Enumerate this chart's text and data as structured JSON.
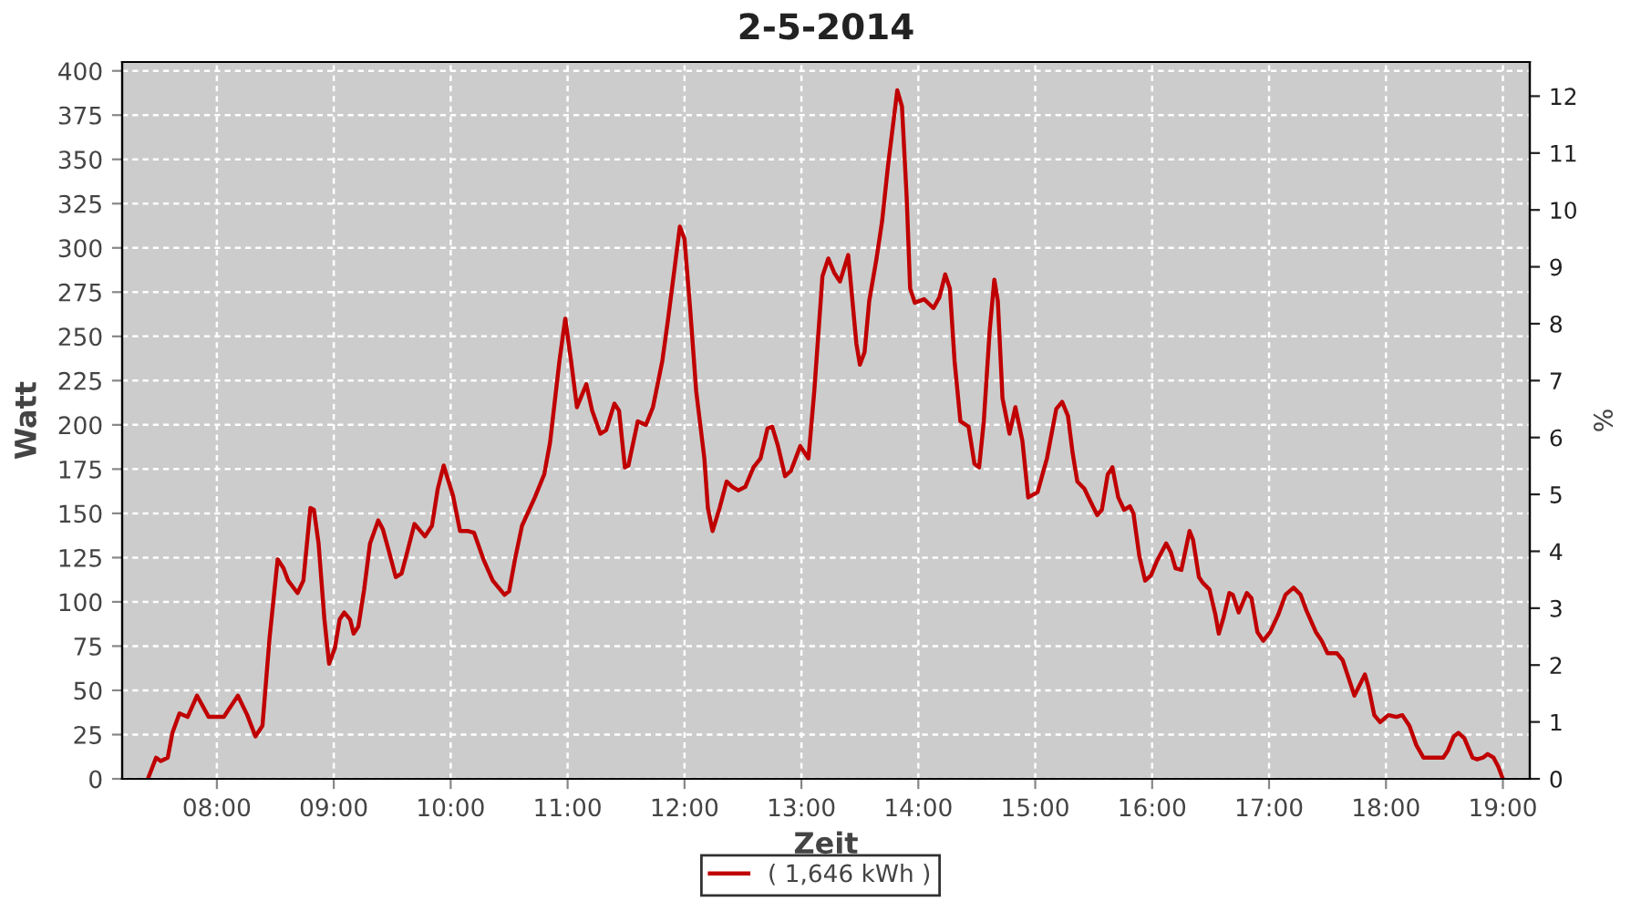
{
  "chart_data": {
    "type": "line",
    "title": "2-5-2014",
    "xlabel": "Zeit",
    "ylabel": "Watt",
    "y2label": "%",
    "xlim": [
      7.19,
      19.23
    ],
    "xticks": [
      {
        "value": 8,
        "label": "08:00"
      },
      {
        "value": 9,
        "label": "09:00"
      },
      {
        "value": 10,
        "label": "10:00"
      },
      {
        "value": 11,
        "label": "11:00"
      },
      {
        "value": 12,
        "label": "12:00"
      },
      {
        "value": 13,
        "label": "13:00"
      },
      {
        "value": 14,
        "label": "14:00"
      },
      {
        "value": 15,
        "label": "15:00"
      },
      {
        "value": 16,
        "label": "16:00"
      },
      {
        "value": 17,
        "label": "17:00"
      },
      {
        "value": 18,
        "label": "18:00"
      },
      {
        "value": 19,
        "label": "19:00"
      }
    ],
    "ylim": [
      0,
      405
    ],
    "yticks": [
      0,
      25,
      50,
      75,
      100,
      125,
      150,
      175,
      200,
      225,
      250,
      275,
      300,
      325,
      350,
      375,
      400
    ],
    "y2lim": [
      0,
      12.6
    ],
    "y2ticks": [
      0,
      1,
      2,
      3,
      4,
      5,
      6,
      7,
      8,
      9,
      10,
      11,
      12
    ],
    "grid": true,
    "legend": "bottom",
    "marker": "none",
    "line_style": "solid",
    "series": [
      {
        "name": "( 1,646 kWh )",
        "color": "#c00000",
        "x": [
          7.41,
          7.48,
          7.52,
          7.58,
          7.62,
          7.68,
          7.75,
          7.83,
          7.93,
          8.0,
          8.06,
          8.18,
          8.26,
          8.33,
          8.39,
          8.45,
          8.52,
          8.57,
          8.61,
          8.69,
          8.74,
          8.8,
          8.83,
          8.87,
          8.92,
          8.96,
          9.01,
          9.05,
          9.09,
          9.14,
          9.17,
          9.21,
          9.26,
          9.31,
          9.38,
          9.42,
          9.47,
          9.53,
          9.58,
          9.62,
          9.69,
          9.78,
          9.84,
          9.89,
          9.94,
          10.02,
          10.08,
          10.15,
          10.2,
          10.28,
          10.36,
          10.46,
          10.5,
          10.55,
          10.61,
          10.72,
          10.8,
          10.85,
          10.93,
          10.98,
          11.03,
          11.08,
          11.16,
          11.21,
          11.28,
          11.33,
          11.4,
          11.44,
          11.49,
          11.52,
          11.6,
          11.67,
          11.73,
          11.81,
          11.86,
          11.92,
          11.96,
          12.0,
          12.05,
          12.1,
          12.17,
          12.2,
          12.24,
          12.3,
          12.36,
          12.41,
          12.46,
          12.52,
          12.59,
          12.65,
          12.71,
          12.75,
          12.8,
          12.86,
          12.91,
          12.99,
          13.06,
          13.11,
          13.18,
          13.23,
          13.28,
          13.33,
          13.4,
          13.47,
          13.5,
          13.54,
          13.58,
          13.64,
          13.69,
          13.74,
          13.82,
          13.86,
          13.9,
          13.93,
          13.97,
          14.05,
          14.13,
          14.18,
          14.23,
          14.27,
          14.31,
          14.36,
          14.43,
          14.48,
          14.52,
          14.56,
          14.61,
          14.65,
          14.68,
          14.72,
          14.78,
          14.83,
          14.89,
          14.94,
          15.02,
          15.1,
          15.18,
          15.23,
          15.28,
          15.32,
          15.36,
          15.42,
          15.47,
          15.53,
          15.57,
          15.62,
          15.66,
          15.71,
          15.76,
          15.81,
          15.84,
          15.89,
          15.94,
          15.99,
          16.04,
          16.12,
          16.16,
          16.2,
          16.25,
          16.32,
          16.35,
          16.4,
          16.43,
          16.49,
          16.54,
          16.57,
          16.61,
          16.66,
          16.69,
          16.74,
          16.81,
          16.85,
          16.9,
          16.95,
          17.01,
          17.08,
          17.14,
          17.21,
          17.27,
          17.32,
          17.4,
          17.45,
          17.5,
          17.58,
          17.63,
          17.68,
          17.73,
          17.79,
          17.82,
          17.85,
          17.9,
          17.95,
          18.02,
          18.09,
          18.14,
          18.2,
          18.26,
          18.32,
          18.41,
          18.49,
          18.53,
          18.58,
          18.62,
          18.67,
          18.74,
          18.78,
          18.83,
          18.87,
          18.92,
          18.96,
          19.0
        ],
        "values": [
          0,
          12,
          10,
          12,
          26,
          37,
          35,
          47,
          35,
          35,
          35,
          47,
          36,
          24,
          30,
          79,
          124,
          119,
          112,
          105,
          112,
          153,
          152,
          133,
          90,
          65,
          74,
          90,
          94,
          90,
          82,
          86,
          107,
          133,
          146,
          141,
          129,
          114,
          116,
          126,
          144,
          137,
          143,
          164,
          177,
          160,
          140,
          140,
          139,
          124,
          112,
          104,
          106,
          124,
          143,
          159,
          172,
          190,
          236,
          260,
          236,
          210,
          223,
          208,
          195,
          197,
          212,
          208,
          176,
          177,
          202,
          200,
          210,
          236,
          260,
          291,
          312,
          305,
          264,
          219,
          181,
          153,
          140,
          153,
          168,
          165,
          163,
          165,
          176,
          181,
          198,
          199,
          188,
          171,
          174,
          188,
          181,
          219,
          284,
          294,
          286,
          281,
          296,
          246,
          234,
          241,
          270,
          293,
          315,
          346,
          389,
          380,
          329,
          277,
          269,
          271,
          266,
          272,
          285,
          277,
          236,
          202,
          199,
          178,
          176,
          202,
          253,
          282,
          270,
          215,
          195,
          210,
          191,
          159,
          162,
          181,
          209,
          213,
          205,
          184,
          168,
          164,
          157,
          149,
          152,
          172,
          176,
          159,
          152,
          154,
          150,
          126,
          112,
          115,
          123,
          133,
          128,
          119,
          118,
          140,
          135,
          114,
          111,
          107,
          93,
          82,
          91,
          105,
          104,
          94,
          105,
          102,
          83,
          78,
          83,
          93,
          104,
          108,
          104,
          95,
          83,
          78,
          71,
          71,
          67,
          57,
          47,
          55,
          59,
          52,
          36,
          32,
          36,
          35,
          36,
          30,
          19,
          12,
          12,
          12,
          16,
          24,
          26,
          23,
          12,
          11,
          12,
          14,
          12,
          7,
          0
        ]
      }
    ]
  }
}
